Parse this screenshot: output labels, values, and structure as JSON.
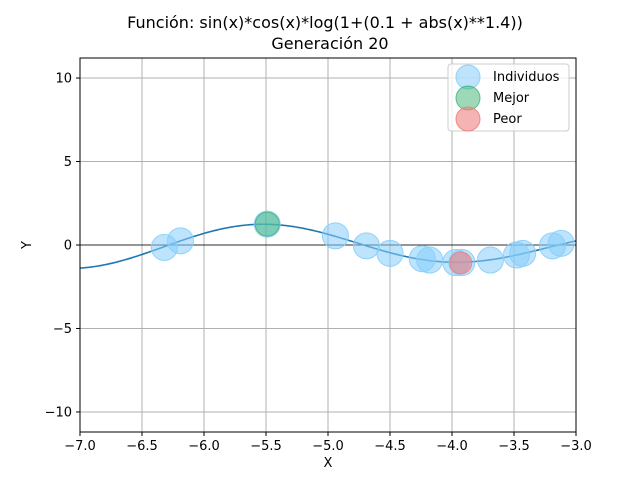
{
  "chart_data": {
    "type": "scatter",
    "title": "Función: sin(x)*cos(x)*log(1+(0.1 + abs(x)**1.4))",
    "subtitle": "Generación 20",
    "xlabel": "X",
    "ylabel": "Y",
    "xlim": [
      -7.0,
      -3.0
    ],
    "ylim": [
      -11.2,
      11.2
    ],
    "x_ticks": [
      -7.0,
      -6.5,
      -6.0,
      -5.5,
      -5.0,
      -4.5,
      -4.0,
      -3.5,
      -3.0
    ],
    "x_tick_labels": [
      "−7.0",
      "−6.5",
      "−6.0",
      "−5.5",
      "−5.0",
      "−4.5",
      "−4.0",
      "−3.5",
      "−3.0"
    ],
    "y_ticks": [
      -10,
      -5,
      0,
      5,
      10
    ],
    "y_tick_labels": [
      "−10",
      "−5",
      "0",
      "5",
      "10"
    ],
    "grid": true,
    "zero_line": true,
    "legend_position": "top-right",
    "function_curve": {
      "color": "#1f77b4",
      "x_range": [
        -7.0,
        -3.0
      ]
    },
    "series": [
      {
        "name": "Individuos",
        "color": "#87cefa",
        "points": [
          {
            "x": -6.32,
            "y": -0.15
          },
          {
            "x": -6.19,
            "y": 0.25
          },
          {
            "x": -5.49,
            "y": 1.25
          },
          {
            "x": -4.94,
            "y": 0.55
          },
          {
            "x": -4.69,
            "y": -0.05
          },
          {
            "x": -4.5,
            "y": -0.5
          },
          {
            "x": -4.24,
            "y": -0.82
          },
          {
            "x": -4.18,
            "y": -0.9
          },
          {
            "x": -3.97,
            "y": -1.05
          },
          {
            "x": -3.92,
            "y": -1.05
          },
          {
            "x": -3.69,
            "y": -0.9
          },
          {
            "x": -3.48,
            "y": -0.6
          },
          {
            "x": -3.43,
            "y": -0.5
          },
          {
            "x": -3.19,
            "y": -0.05
          },
          {
            "x": -3.12,
            "y": 0.1
          }
        ]
      },
      {
        "name": "Mejor",
        "color": "#3cb371",
        "points": [
          {
            "x": -5.49,
            "y": 1.25
          }
        ]
      },
      {
        "name": "Peor",
        "color": "#f08080",
        "points": [
          {
            "x": -3.93,
            "y": -1.07
          }
        ]
      }
    ]
  }
}
